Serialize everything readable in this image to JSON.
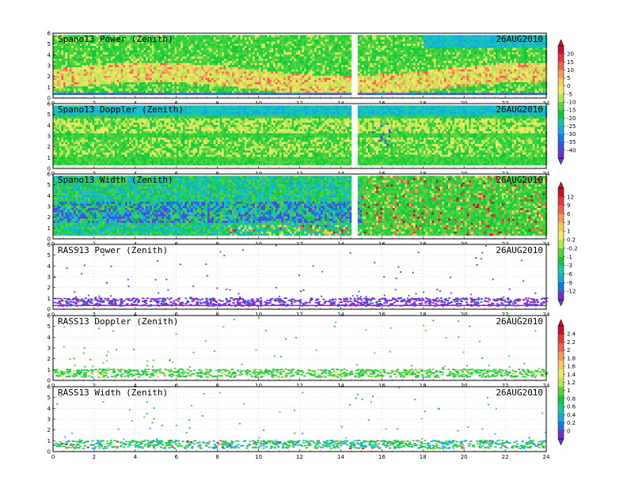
{
  "chart_data": [
    {
      "type": "heatmap",
      "title": "Spano13 Power (Zenith)",
      "date": "26AUG2010",
      "x_ticks": [
        "0",
        "2",
        "4",
        "6",
        "8",
        "10",
        "12",
        "14",
        "16",
        "18",
        "20",
        "22",
        "24"
      ],
      "y_ticks": [
        "0",
        "1",
        "2",
        "3",
        "4",
        "5",
        "6"
      ],
      "xlim": [
        0,
        24
      ],
      "ylim": [
        0,
        6
      ],
      "grid": true,
      "colorbar": "power"
    },
    {
      "type": "heatmap",
      "title": "Spano13 Doppler (Zenith)",
      "date": "26AUG2010",
      "x_ticks": [
        "0",
        "2",
        "4",
        "6",
        "8",
        "10",
        "12",
        "14",
        "16",
        "18",
        "20",
        "22",
        "24"
      ],
      "y_ticks": [
        "0",
        "1",
        "2",
        "3",
        "4",
        "5",
        "6"
      ],
      "xlim": [
        0,
        24
      ],
      "ylim": [
        0,
        6
      ],
      "grid": true,
      "colorbar": "power"
    },
    {
      "type": "heatmap",
      "title": "Spano13 Width (Zenith)",
      "date": "26AUG2010",
      "x_ticks": [
        "0",
        "2",
        "4",
        "6",
        "8",
        "10",
        "12",
        "14",
        "16",
        "18",
        "20",
        "22",
        "24"
      ],
      "y_ticks": [
        "0",
        "1",
        "2",
        "3",
        "4",
        "5",
        "6"
      ],
      "xlim": [
        0,
        24
      ],
      "ylim": [
        0,
        6
      ],
      "grid": true,
      "colorbar": "doppler"
    },
    {
      "type": "heatmap",
      "title": "RASS13 Power (Zenith)",
      "date": "26AUG2010",
      "x_ticks": [
        "0",
        "2",
        "4",
        "6",
        "8",
        "10",
        "12",
        "14",
        "16",
        "18",
        "20",
        "22",
        "24"
      ],
      "y_ticks": [
        "0",
        "1",
        "2",
        "3",
        "4",
        "5",
        "6"
      ],
      "xlim": [
        0,
        24
      ],
      "ylim": [
        0,
        6
      ],
      "grid": true,
      "colorbar": "doppler"
    },
    {
      "type": "heatmap",
      "title": "RASS13 Doppler (Zenith)",
      "date": "26AUG2010",
      "x_ticks": [
        "0",
        "2",
        "4",
        "6",
        "8",
        "10",
        "12",
        "14",
        "16",
        "18",
        "20",
        "22",
        "24"
      ],
      "y_ticks": [
        "0",
        "1",
        "2",
        "3",
        "4",
        "5",
        "6"
      ],
      "xlim": [
        0,
        24
      ],
      "ylim": [
        0,
        6
      ],
      "grid": true,
      "colorbar": "width"
    },
    {
      "type": "heatmap",
      "title": "RASS13 Width (Zenith)",
      "date": "26AUG2010",
      "x_ticks": [
        "0",
        "2",
        "4",
        "6",
        "8",
        "10",
        "12",
        "14",
        "16",
        "18",
        "20",
        "22",
        "24"
      ],
      "y_ticks": [
        "0",
        "1",
        "2",
        "3",
        "4",
        "5",
        "6"
      ],
      "xlim": [
        0,
        24
      ],
      "ylim": [
        0,
        6
      ],
      "grid": true,
      "colorbar": "width"
    }
  ],
  "colorbars": {
    "power": {
      "labels": [
        "20",
        "15",
        "10",
        "5",
        "0",
        "-5",
        "-10",
        "-15",
        "-20",
        "-25",
        "-30",
        "-35",
        "-40"
      ],
      "colors": [
        "#c8102e",
        "#e8323c",
        "#f0644e",
        "#f59a5a",
        "#f5c860",
        "#f0e868",
        "#b4e650",
        "#5ad23c",
        "#14c83c",
        "#14c8a0",
        "#14aadc",
        "#1478e6",
        "#3c50e6",
        "#6e32d2"
      ]
    },
    "doppler": {
      "labels": [
        "12",
        "9",
        "6",
        "3",
        "1",
        "0.2",
        "-0.2",
        "-1",
        "-3",
        "-6",
        "-9",
        "-12"
      ],
      "colors": [
        "#c8102e",
        "#e8323c",
        "#f0644e",
        "#f59a5a",
        "#f5c860",
        "#f0e868",
        "#b4e650",
        "#5ad23c",
        "#14c83c",
        "#14c8a0",
        "#14aadc",
        "#1478e6",
        "#6e32d2"
      ]
    },
    "width": {
      "labels": [
        "2.4",
        "2.2",
        "2",
        "1.8",
        "1.6",
        "1.4",
        "1.2",
        "1",
        "0.8",
        "0.6",
        "0.4",
        "0.2",
        "0"
      ],
      "colors": [
        "#c8102e",
        "#e8323c",
        "#f0644e",
        "#f59a5a",
        "#f5c860",
        "#f0e868",
        "#b4e650",
        "#5ad23c",
        "#14c83c",
        "#14c8a0",
        "#14aadc",
        "#1478e6",
        "#6e32d2"
      ]
    }
  }
}
